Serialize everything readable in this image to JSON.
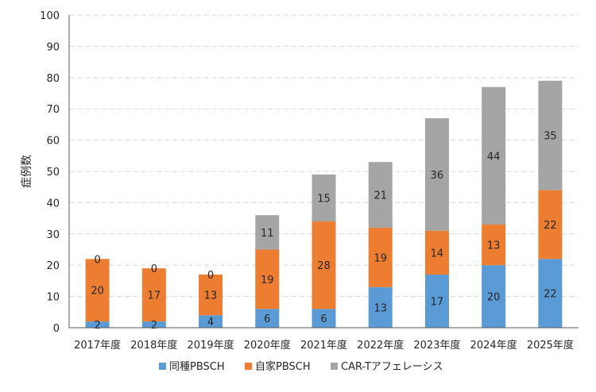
{
  "chart_data": {
    "type": "bar",
    "stacked": true,
    "ylabel": "症例数",
    "ylim": [
      0,
      100
    ],
    "yticks": [
      0,
      10,
      20,
      30,
      40,
      50,
      60,
      70,
      80,
      90,
      100
    ],
    "grid": true,
    "legend_position": "bottom",
    "categories": [
      "2017年度",
      "2018年度",
      "2019年度",
      "2020年度",
      "2021年度",
      "2022年度",
      "2023年度",
      "2024年度",
      "2025年度"
    ],
    "series": [
      {
        "name": "同種PBSCH",
        "color": "#5b9bd5",
        "values": [
          2,
          2,
          4,
          6,
          6,
          13,
          17,
          20,
          22
        ]
      },
      {
        "name": "自家PBSCH",
        "color": "#ed7d31",
        "values": [
          20,
          17,
          13,
          19,
          28,
          19,
          14,
          13,
          22
        ]
      },
      {
        "name": "CAR-Tアフェレーシス",
        "color": "#a5a5a5",
        "values": [
          0,
          0,
          0,
          11,
          15,
          21,
          36,
          44,
          35
        ]
      }
    ]
  }
}
